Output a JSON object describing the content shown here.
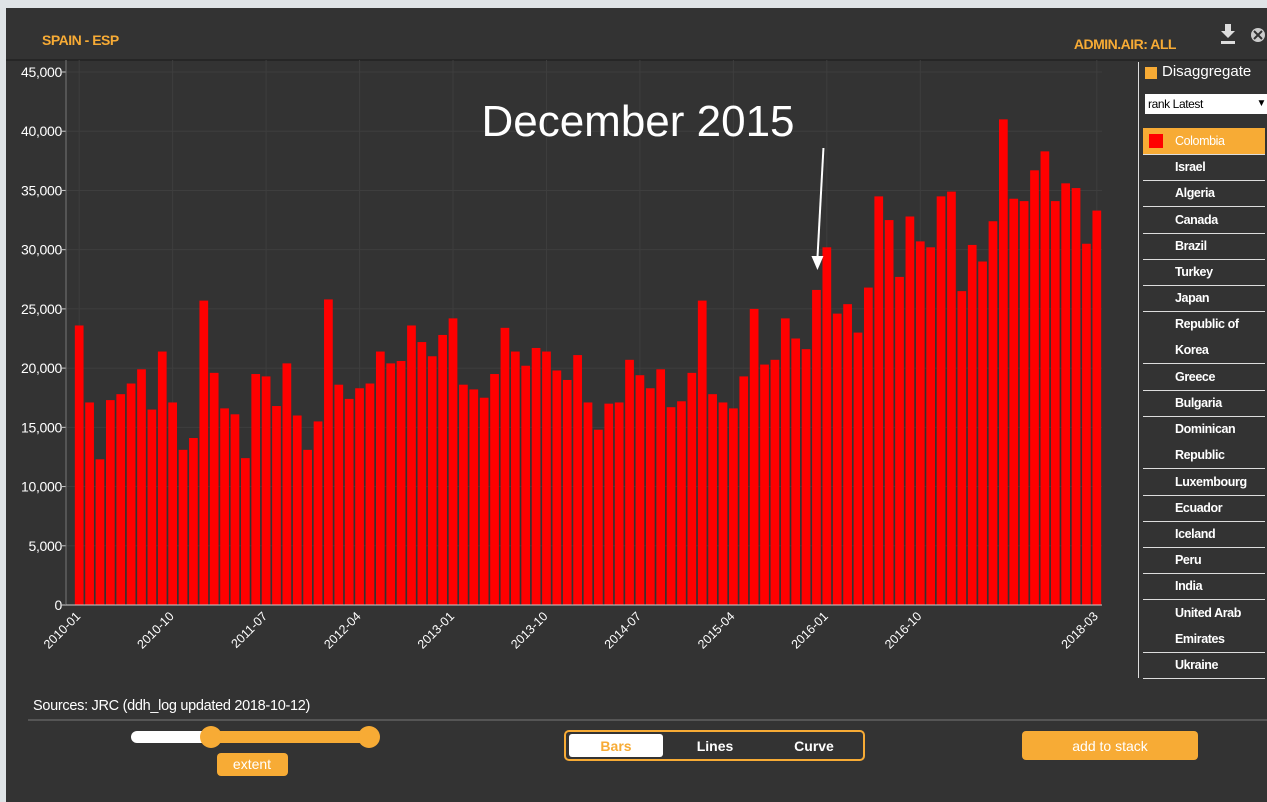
{
  "chart_data": {
    "type": "bar",
    "title": "SPAIN - ESP",
    "subtitle": "ADMIN.AIR: ALL",
    "annotations": [
      "December 2015"
    ],
    "categories": [
      "2010-01",
      null,
      null,
      null,
      null,
      null,
      null,
      null,
      null,
      "2010-10",
      null,
      null,
      null,
      null,
      null,
      null,
      null,
      null,
      "2011-07",
      null,
      null,
      null,
      null,
      null,
      null,
      null,
      null,
      "2012-04",
      null,
      null,
      null,
      null,
      null,
      null,
      null,
      null,
      "2013-01",
      null,
      null,
      null,
      null,
      null,
      null,
      null,
      null,
      "2013-10",
      null,
      null,
      null,
      null,
      null,
      null,
      null,
      null,
      "2014-07",
      null,
      null,
      null,
      null,
      null,
      null,
      null,
      null,
      "2015-04",
      null,
      null,
      null,
      null,
      null,
      null,
      null,
      null,
      "2016-01",
      null,
      null,
      null,
      null,
      null,
      null,
      null,
      null,
      "2016-10",
      null,
      null,
      null,
      null,
      null,
      null,
      null,
      null,
      null,
      null,
      null,
      null,
      null,
      null,
      null,
      null,
      "2018-03"
    ],
    "values": [
      23600,
      17100,
      12300,
      17300,
      17800,
      18700,
      19900,
      16500,
      21400,
      17100,
      13100,
      14100,
      25700,
      19600,
      16600,
      16100,
      12400,
      19500,
      19300,
      16800,
      20400,
      16000,
      13100,
      15500,
      25800,
      18600,
      17400,
      18300,
      18700,
      21400,
      20400,
      20600,
      23600,
      22200,
      21000,
      22800,
      24200,
      18600,
      18200,
      17500,
      19500,
      23400,
      21400,
      20200,
      21700,
      21400,
      19800,
      19000,
      21100,
      17100,
      14800,
      17000,
      17100,
      20700,
      19400,
      18300,
      19900,
      16700,
      17200,
      19600,
      25700,
      17800,
      17100,
      16600,
      19300,
      25000,
      20300,
      20700,
      24200,
      22500,
      21600,
      26600,
      30200,
      24600,
      25400,
      23000,
      26800,
      34500,
      32500,
      27700,
      32800,
      30700,
      30200,
      34500,
      34900,
      26500,
      30400,
      29000,
      32400,
      41000,
      34300,
      34100,
      36700,
      38300,
      34100,
      35600,
      35200,
      30500,
      33300
    ],
    "color": "#ff0000",
    "ylim": [
      0,
      45000
    ],
    "yticks": [
      0,
      {
        "value": 5000,
        "label": "5,000"
      },
      {
        "value": 10000,
        "label": "10,000"
      },
      {
        "value": 15000,
        "label": "15,000"
      },
      {
        "value": 20000,
        "label": "20,000"
      },
      {
        "value": 25000,
        "label": "25,000"
      },
      {
        "value": 30000,
        "label": "30,000"
      },
      {
        "value": 35000,
        "label": "35,000"
      },
      {
        "value": 40000,
        "label": "40,000"
      },
      {
        "value": 45000,
        "label": "45,000"
      }
    ],
    "grid": true
  },
  "sidebar": {
    "checkbox": "Disaggregate",
    "select": "rank Latest",
    "countries": [
      "Colombia",
      "Israel",
      "Algeria",
      "Canada",
      "Brazil",
      "Turkey",
      "Japan",
      "Republic of Korea",
      "Greece",
      "Bulgaria",
      "Dominican Republic",
      "Luxembourg",
      "Ecuador",
      "Iceland",
      "Peru",
      "India",
      "United Arab Emirates",
      "Ukraine"
    ]
  },
  "footer": {
    "sources": "Sources: JRC (ddh_log updated 2018-10-12)",
    "extent": "extent",
    "modes": [
      "Bars",
      "Lines",
      "Curve"
    ],
    "add_button": "add to stack"
  }
}
